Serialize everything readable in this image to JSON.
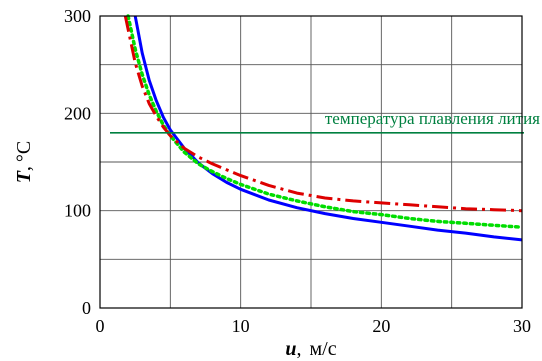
{
  "chart_data": {
    "type": "line",
    "xlim": [
      0,
      30
    ],
    "ylim": [
      0,
      300
    ],
    "x_ticks": [
      0,
      10,
      20,
      30
    ],
    "y_ticks": [
      0,
      100,
      200,
      300
    ],
    "x_grid_step": 5,
    "y_grid_step": 50,
    "grid": true,
    "xlabel": {
      "var": "u",
      "sep": ",",
      "unit": "м/с"
    },
    "ylabel": {
      "var": "T",
      "sep": ",",
      "unit": "°C"
    },
    "series": [
      {
        "color": "#0000ff",
        "style": "solid",
        "x": [
          2.5,
          3,
          3.5,
          4,
          4.5,
          5,
          6,
          7,
          8,
          9,
          10,
          12,
          14,
          16,
          18,
          20,
          22,
          24,
          26,
          28,
          30
        ],
        "y": [
          300,
          262,
          234,
          213,
          196,
          183,
          164,
          149,
          138,
          129,
          122,
          111,
          103,
          97,
          92,
          88,
          84,
          80,
          77,
          73,
          70
        ]
      },
      {
        "color": "#00dd00",
        "style": "dotted",
        "x": [
          2.0,
          2.5,
          3,
          3.5,
          4,
          4.5,
          5,
          6,
          7,
          8,
          9,
          10,
          12,
          14,
          16,
          18,
          20,
          22,
          24,
          26,
          28,
          30
        ],
        "y": [
          300,
          266,
          240,
          219,
          202,
          188,
          177,
          160,
          148,
          140,
          133,
          127,
          117,
          110,
          104,
          99,
          96,
          92,
          89,
          87,
          85,
          83
        ]
      },
      {
        "color": "#dd0000",
        "style": "dash-dot",
        "x": [
          1.8,
          2.5,
          3,
          3.5,
          4,
          4.5,
          5,
          6,
          7,
          8,
          9,
          10,
          12,
          14,
          16,
          18,
          20,
          22,
          24,
          26,
          28,
          30
        ],
        "y": [
          300,
          252,
          228,
          210,
          197,
          186,
          177,
          164,
          155,
          148,
          142,
          136,
          126,
          118,
          113,
          110,
          108,
          106,
          104,
          102,
          101,
          100
        ]
      }
    ],
    "reference_line": {
      "y": 180,
      "color": "#008040",
      "label": "температура плавления лития"
    }
  }
}
